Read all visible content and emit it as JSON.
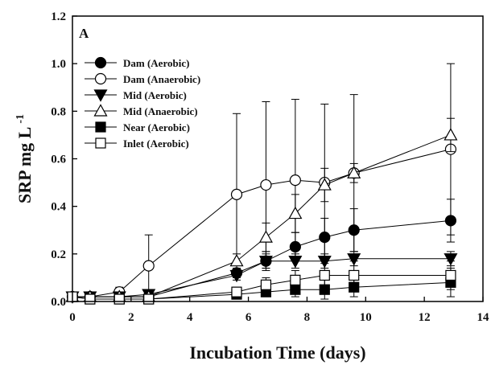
{
  "chart_data": {
    "type": "line",
    "panel_label": "A",
    "xlabel": "Incubation Time (days)",
    "ylabel_main": "SRP mg L",
    "ylabel_sup": "-1",
    "xlim": [
      0,
      14
    ],
    "ylim": [
      0,
      1.2
    ],
    "xticks": [
      0,
      2,
      4,
      6,
      8,
      10,
      12,
      14
    ],
    "xtick_labels": [
      "0",
      "2",
      "4",
      "6",
      "8",
      "10",
      "12",
      "14"
    ],
    "yticks": [
      0,
      0.2,
      0.4,
      0.6,
      0.8,
      1.0,
      1.2
    ],
    "ytick_labels": [
      "0.0",
      "0.2",
      "0.4",
      "0.6",
      "0.8",
      "1.0",
      "1.2"
    ],
    "legend_position": "upper-left",
    "grid": false,
    "series": [
      {
        "name": "Dam (Aerobic)",
        "marker": "circle",
        "filled": true,
        "x": [
          0,
          0.6,
          1.6,
          2.6,
          5.6,
          6.6,
          7.6,
          8.6,
          9.6,
          12.9
        ],
        "y": [
          0.02,
          0.02,
          0.02,
          0.02,
          0.12,
          0.17,
          0.23,
          0.27,
          0.3,
          0.34
        ],
        "err": [
          0.01,
          0.01,
          0.01,
          0.01,
          0.02,
          0.04,
          0.06,
          0.08,
          0.09,
          0.09
        ]
      },
      {
        "name": "Dam (Anaerobic)",
        "marker": "circle",
        "filled": false,
        "x": [
          0,
          0.6,
          1.6,
          2.6,
          5.6,
          6.6,
          7.6,
          8.6,
          9.6,
          12.9
        ],
        "y": [
          0.02,
          0.02,
          0.04,
          0.15,
          0.45,
          0.49,
          0.51,
          0.5,
          0.54,
          0.64
        ],
        "err": [
          0.01,
          0.01,
          0.02,
          0.13,
          0.34,
          0.35,
          0.34,
          0.33,
          0.33,
          0.36
        ]
      },
      {
        "name": "Mid (Aerobic)",
        "marker": "triangle-down",
        "filled": true,
        "x": [
          0,
          0.6,
          1.6,
          2.6,
          5.6,
          6.6,
          7.6,
          8.6,
          9.6,
          12.9
        ],
        "y": [
          0.02,
          0.02,
          0.02,
          0.03,
          0.11,
          0.17,
          0.17,
          0.17,
          0.18,
          0.18
        ],
        "err": [
          0.01,
          0.01,
          0.01,
          0.01,
          0.02,
          0.03,
          0.03,
          0.03,
          0.03,
          0.03
        ]
      },
      {
        "name": "Mid (Anaerobic)",
        "marker": "triangle-up",
        "filled": false,
        "x": [
          0,
          0.6,
          1.6,
          2.6,
          5.6,
          6.6,
          7.6,
          8.6,
          9.6,
          12.9
        ],
        "y": [
          0.02,
          0.02,
          0.02,
          0.02,
          0.17,
          0.27,
          0.37,
          0.49,
          0.54,
          0.7
        ],
        "err": [
          0.01,
          0.01,
          0.01,
          0.01,
          0.03,
          0.06,
          0.08,
          0.07,
          0.04,
          0.07
        ]
      },
      {
        "name": "Near (Aerobic)",
        "marker": "square",
        "filled": true,
        "x": [
          0,
          0.6,
          1.6,
          2.6,
          5.6,
          6.6,
          7.6,
          8.6,
          9.6,
          12.9
        ],
        "y": [
          0.02,
          0.01,
          0.01,
          0.01,
          0.03,
          0.04,
          0.05,
          0.05,
          0.06,
          0.08
        ],
        "err": [
          0.01,
          0.01,
          0.01,
          0.01,
          0.01,
          0.02,
          0.03,
          0.04,
          0.04,
          0.06
        ]
      },
      {
        "name": "Inlet (Aerobic)",
        "marker": "square",
        "filled": false,
        "x": [
          0,
          0.6,
          1.6,
          2.6,
          5.6,
          6.6,
          7.6,
          8.6,
          9.6,
          12.9
        ],
        "y": [
          0.02,
          0.01,
          0.01,
          0.01,
          0.04,
          0.07,
          0.09,
          0.11,
          0.11,
          0.11
        ],
        "err": [
          0.01,
          0.01,
          0.01,
          0.01,
          0.02,
          0.03,
          0.04,
          0.05,
          0.06,
          0.06
        ]
      }
    ]
  }
}
